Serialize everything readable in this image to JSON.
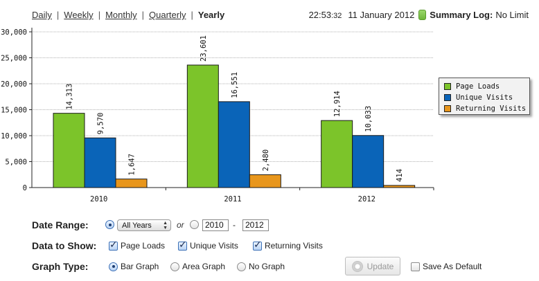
{
  "nav": {
    "periods": [
      "Daily",
      "Weekly",
      "Monthly",
      "Quarterly",
      "Yearly"
    ],
    "active": "Yearly",
    "separator": "|"
  },
  "status": {
    "time_hm": "22:53",
    "time_s": ":32",
    "date": "11 January 2012",
    "summary_label": "Summary Log:",
    "summary_value": "No Limit"
  },
  "chart_data": {
    "type": "bar",
    "categories": [
      "2010",
      "2011",
      "2012"
    ],
    "series": [
      {
        "name": "Page Loads",
        "color": "#7cc42a",
        "values": [
          14313,
          23601,
          12914
        ]
      },
      {
        "name": "Unique Visits",
        "color": "#0a64b8",
        "values": [
          9570,
          16551,
          10033
        ]
      },
      {
        "name": "Returning Visits",
        "color": "#e8961c",
        "values": [
          1647,
          2480,
          414
        ]
      }
    ],
    "value_labels": [
      [
        "14,313",
        "23,601",
        "12,914"
      ],
      [
        "9,570",
        "16,551",
        "10,033"
      ],
      [
        "1,647",
        "2,480",
        "414"
      ]
    ],
    "ylim": [
      0,
      30000
    ],
    "yticks": [
      0,
      5000,
      10000,
      15000,
      20000,
      25000,
      30000
    ],
    "ytick_labels": [
      "0",
      "5,000",
      "10,000",
      "15,000",
      "20,000",
      "25,000",
      "30,000"
    ],
    "grid": true,
    "legend_position": "right"
  },
  "controls": {
    "date_range": {
      "label": "Date Range:",
      "select_value": "All Years",
      "or_text": "or",
      "from_year": "2010",
      "dash": "-",
      "to_year": "2012"
    },
    "data_to_show": {
      "label": "Data to Show:",
      "options": [
        "Page Loads",
        "Unique Visits",
        "Returning Visits"
      ]
    },
    "graph_type": {
      "label": "Graph Type:",
      "options": [
        "Bar Graph",
        "Area Graph",
        "No Graph"
      ],
      "selected": "Bar Graph"
    },
    "update_label": "Update",
    "save_default_label": "Save As Default"
  }
}
